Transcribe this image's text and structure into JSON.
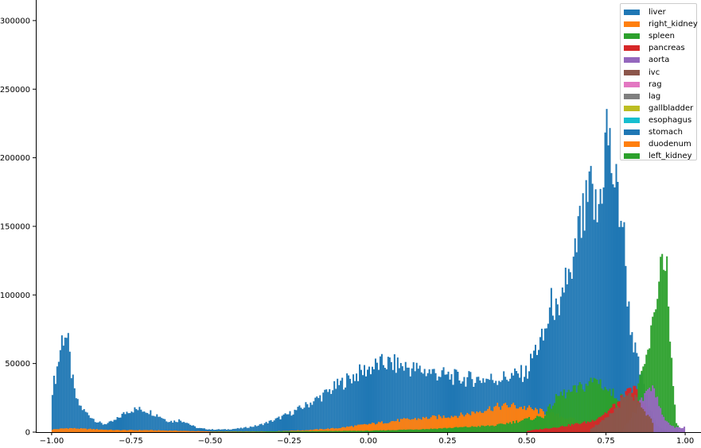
{
  "chart_data": {
    "type": "histogram",
    "title": "",
    "xlabel": "",
    "ylabel": "",
    "xlim": [
      -1.05,
      1.05
    ],
    "ylim": [
      0,
      315000
    ],
    "grid": false,
    "legend_placement": "top-right",
    "x_ticks": [
      {
        "value": -1.0,
        "label": "−1.00"
      },
      {
        "value": -0.75,
        "label": "−0.75"
      },
      {
        "value": -0.5,
        "label": "−0.50"
      },
      {
        "value": -0.25,
        "label": "−0.25"
      },
      {
        "value": 0.0,
        "label": "0.00"
      },
      {
        "value": 0.25,
        "label": "0.25"
      },
      {
        "value": 0.5,
        "label": "0.50"
      },
      {
        "value": 0.75,
        "label": "0.75"
      },
      {
        "value": 1.0,
        "label": "1.00"
      }
    ],
    "y_ticks": [
      {
        "value": 0,
        "label": "0"
      },
      {
        "value": 50000,
        "label": "50000"
      },
      {
        "value": 100000,
        "label": "100000"
      },
      {
        "value": 150000,
        "label": "150000"
      },
      {
        "value": 200000,
        "label": "200000"
      },
      {
        "value": 250000,
        "label": "250000"
      },
      {
        "value": 300000,
        "label": "300000"
      }
    ],
    "series": [
      {
        "name": "liver",
        "color": "#1f77b4",
        "points": [
          [
            -1.0,
            33000
          ],
          [
            -0.99,
            42000
          ],
          [
            -0.98,
            55000
          ],
          [
            -0.97,
            70000
          ],
          [
            -0.96,
            75000
          ],
          [
            -0.95,
            65000
          ],
          [
            -0.94,
            45000
          ],
          [
            -0.93,
            30000
          ],
          [
            -0.92,
            22000
          ],
          [
            -0.9,
            16000
          ],
          [
            -0.88,
            12000
          ],
          [
            -0.86,
            8000
          ],
          [
            -0.84,
            6000
          ],
          [
            -0.82,
            7000
          ],
          [
            -0.8,
            9000
          ],
          [
            -0.78,
            13000
          ],
          [
            -0.76,
            16000
          ],
          [
            -0.74,
            17000
          ],
          [
            -0.72,
            17000
          ],
          [
            -0.7,
            16000
          ],
          [
            -0.68,
            14000
          ],
          [
            -0.66,
            12000
          ],
          [
            -0.64,
            9000
          ],
          [
            -0.62,
            8000
          ],
          [
            -0.6,
            9000
          ],
          [
            -0.58,
            8000
          ],
          [
            -0.56,
            5000
          ],
          [
            -0.54,
            3000
          ],
          [
            -0.52,
            2500
          ],
          [
            -0.5,
            2000
          ],
          [
            -0.45,
            2000
          ],
          [
            -0.4,
            3000
          ],
          [
            -0.35,
            5000
          ],
          [
            -0.3,
            9000
          ],
          [
            -0.25,
            14000
          ],
          [
            -0.2,
            20000
          ],
          [
            -0.15,
            27000
          ],
          [
            -0.1,
            35000
          ],
          [
            -0.05,
            42000
          ],
          [
            0.0,
            48000
          ],
          [
            0.05,
            52000
          ],
          [
            0.1,
            50000
          ],
          [
            0.15,
            47000
          ],
          [
            0.2,
            45000
          ],
          [
            0.25,
            42000
          ],
          [
            0.3,
            40000
          ],
          [
            0.35,
            40000
          ],
          [
            0.4,
            40000
          ],
          [
            0.45,
            42000
          ],
          [
            0.5,
            45000
          ],
          [
            0.52,
            60000
          ],
          [
            0.55,
            70000
          ],
          [
            0.58,
            100000
          ],
          [
            0.6,
            80000
          ],
          [
            0.62,
            120000
          ],
          [
            0.64,
            110000
          ],
          [
            0.66,
            150000
          ],
          [
            0.68,
            160000
          ],
          [
            0.7,
            180000
          ],
          [
            0.72,
            160000
          ],
          [
            0.74,
            200000
          ],
          [
            0.75,
            230000
          ],
          [
            0.76,
            210000
          ],
          [
            0.78,
            180000
          ],
          [
            0.8,
            160000
          ],
          [
            0.82,
            90000
          ],
          [
            0.84,
            60000
          ],
          [
            0.86,
            40000
          ],
          [
            0.88,
            20000
          ],
          [
            0.9,
            8000
          ],
          [
            0.92,
            3000
          ],
          [
            0.94,
            1000
          ]
        ]
      },
      {
        "name": "right_kidney",
        "color": "#ff7f0e",
        "points": [
          [
            -1.0,
            2000
          ],
          [
            -0.95,
            3000
          ],
          [
            -0.9,
            2500
          ],
          [
            -0.8,
            1500
          ],
          [
            -0.7,
            1500
          ],
          [
            -0.6,
            1000
          ],
          [
            -0.5,
            500
          ],
          [
            -0.3,
            600
          ],
          [
            -0.2,
            1500
          ],
          [
            -0.1,
            3000
          ],
          [
            0.0,
            6000
          ],
          [
            0.1,
            9000
          ],
          [
            0.2,
            11000
          ],
          [
            0.3,
            13000
          ],
          [
            0.35,
            16000
          ],
          [
            0.4,
            19000
          ],
          [
            0.45,
            20000
          ],
          [
            0.5,
            18000
          ],
          [
            0.55,
            15000
          ],
          [
            0.6,
            12000
          ],
          [
            0.65,
            9000
          ],
          [
            0.7,
            6000
          ],
          [
            0.75,
            3000
          ],
          [
            0.8,
            1000
          ],
          [
            0.85,
            500
          ]
        ]
      },
      {
        "name": "spleen",
        "color": "#2ca02c",
        "points": [
          [
            -0.5,
            200
          ],
          [
            0.0,
            1000
          ],
          [
            0.2,
            2500
          ],
          [
            0.4,
            5000
          ],
          [
            0.55,
            12000
          ],
          [
            0.6,
            28000
          ],
          [
            0.64,
            30000
          ],
          [
            0.68,
            35000
          ],
          [
            0.72,
            40000
          ],
          [
            0.76,
            30000
          ],
          [
            0.8,
            25000
          ],
          [
            0.84,
            30000
          ],
          [
            0.86,
            40000
          ],
          [
            0.88,
            60000
          ],
          [
            0.9,
            85000
          ],
          [
            0.91,
            110000
          ],
          [
            0.92,
            125000
          ],
          [
            0.93,
            140000
          ],
          [
            0.94,
            120000
          ],
          [
            0.95,
            70000
          ],
          [
            0.96,
            30000
          ],
          [
            0.97,
            8000
          ],
          [
            0.98,
            1000
          ]
        ]
      },
      {
        "name": "pancreas",
        "color": "#d62728",
        "points": [
          [
            0.5,
            1000
          ],
          [
            0.6,
            4000
          ],
          [
            0.7,
            8000
          ],
          [
            0.75,
            15000
          ],
          [
            0.8,
            25000
          ],
          [
            0.82,
            30000
          ],
          [
            0.84,
            32000
          ],
          [
            0.86,
            22000
          ],
          [
            0.88,
            12000
          ],
          [
            0.9,
            4000
          ]
        ]
      },
      {
        "name": "aorta",
        "color": "#9467bd",
        "points": [
          [
            0.8,
            3000
          ],
          [
            0.85,
            20000
          ],
          [
            0.88,
            35000
          ],
          [
            0.9,
            30000
          ],
          [
            0.93,
            10000
          ],
          [
            0.96,
            4000
          ],
          [
            0.99,
            3000
          ],
          [
            1.0,
            6000
          ]
        ]
      },
      {
        "name": "ivc",
        "color": "#8c564b",
        "points": [
          [
            0.7,
            3000
          ],
          [
            0.75,
            10000
          ],
          [
            0.78,
            18000
          ],
          [
            0.8,
            25000
          ],
          [
            0.83,
            28000
          ],
          [
            0.86,
            18000
          ],
          [
            0.9,
            6000
          ]
        ]
      },
      {
        "name": "rag",
        "color": "#e377c2",
        "points": []
      },
      {
        "name": "lag",
        "color": "#7f7f7f",
        "points": []
      },
      {
        "name": "gallbladder",
        "color": "#bcbd22",
        "points": []
      },
      {
        "name": "esophagus",
        "color": "#17becf",
        "points": []
      },
      {
        "name": "stomach",
        "color": "#1f77b4",
        "points": []
      },
      {
        "name": "duodenum",
        "color": "#ff7f0e",
        "points": []
      },
      {
        "name": "left_kidney",
        "color": "#2ca02c",
        "points": []
      }
    ]
  }
}
